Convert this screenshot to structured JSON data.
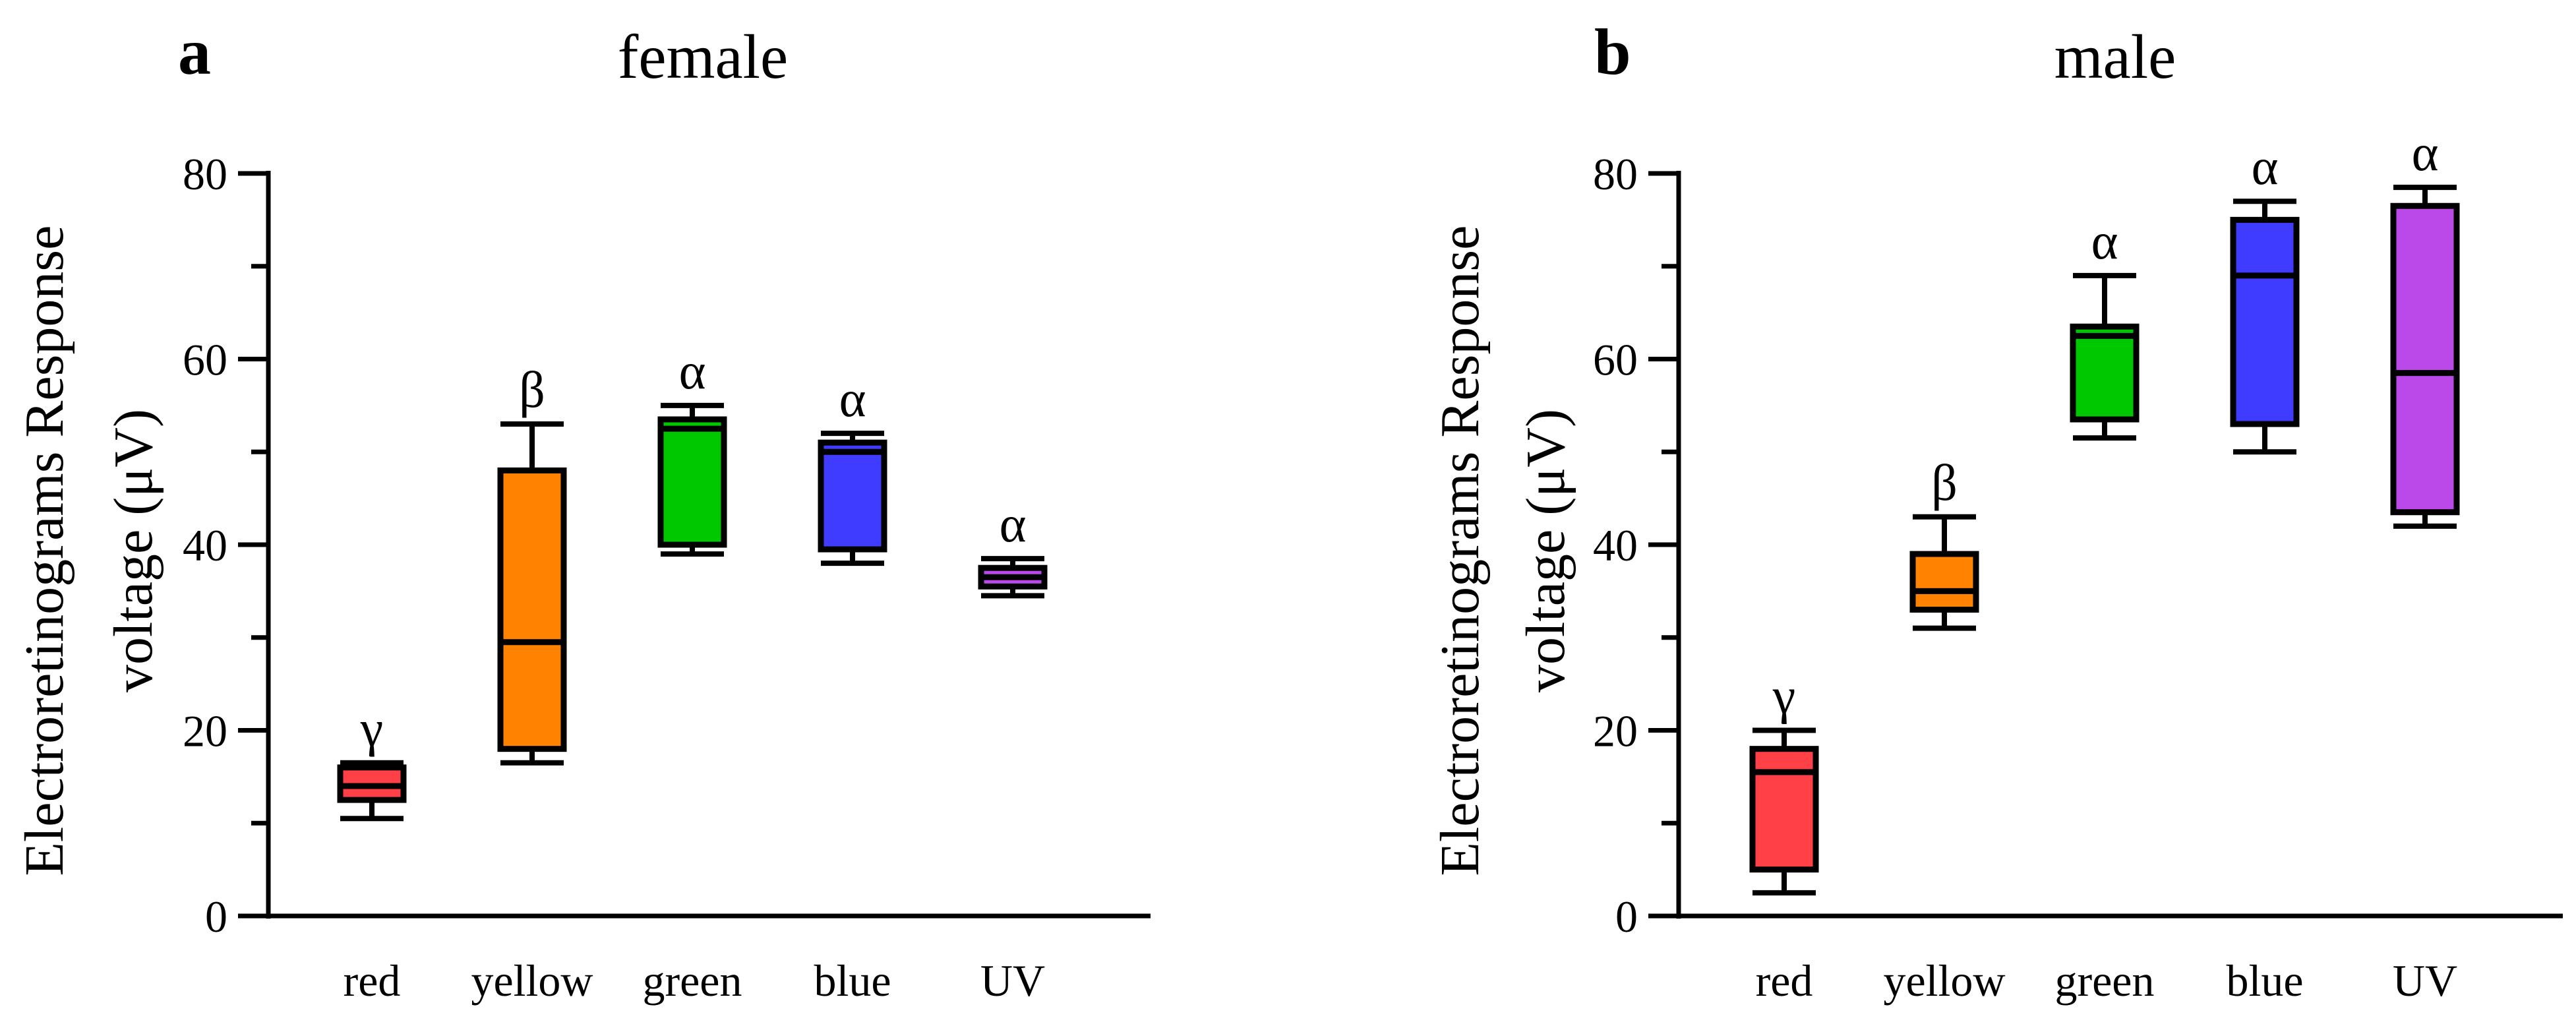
{
  "chart_data": [
    {
      "type": "box",
      "panel": "a",
      "title": "female",
      "ylabel_line1": "Electroretinograms Response",
      "ylabel_line2": "voltage (μV)",
      "xlabel": "",
      "ylim": [
        0,
        80
      ],
      "yticks": [
        0,
        20,
        40,
        60,
        80
      ],
      "categories": [
        "red",
        "yellow",
        "green",
        "blue",
        "UV"
      ],
      "colors": [
        "#ff4047",
        "#ff8200",
        "#00c800",
        "#3f3cff",
        "#bb48e8"
      ],
      "boxes": [
        {
          "min": 10.5,
          "q1": 12.5,
          "median": 14.0,
          "q3": 16.0,
          "max": 16.5,
          "sig": "γ"
        },
        {
          "min": 16.5,
          "q1": 18.0,
          "median": 29.5,
          "q3": 48.0,
          "max": 53.0,
          "sig": "β"
        },
        {
          "min": 39.0,
          "q1": 40.0,
          "median": 52.5,
          "q3": 53.5,
          "max": 55.0,
          "sig": "α"
        },
        {
          "min": 38.0,
          "q1": 39.5,
          "median": 50.0,
          "q3": 51.0,
          "max": 52.0,
          "sig": "α"
        },
        {
          "min": 34.5,
          "q1": 35.5,
          "median": 36.5,
          "q3": 37.5,
          "max": 38.5,
          "sig": "α"
        }
      ]
    },
    {
      "type": "box",
      "panel": "b",
      "title": "male",
      "ylabel_line1": "Electroretinograms Response",
      "ylabel_line2": "voltage (μV)",
      "xlabel": "",
      "ylim": [
        0,
        80
      ],
      "yticks": [
        0,
        20,
        40,
        60,
        80
      ],
      "categories": [
        "red",
        "yellow",
        "green",
        "blue",
        "UV"
      ],
      "colors": [
        "#ff4047",
        "#ff8200",
        "#00c800",
        "#3f3cff",
        "#bb48e8"
      ],
      "boxes": [
        {
          "min": 2.5,
          "q1": 5.0,
          "median": 15.5,
          "q3": 18.0,
          "max": 20.0,
          "sig": "γ"
        },
        {
          "min": 31.0,
          "q1": 33.0,
          "median": 35.0,
          "q3": 39.0,
          "max": 43.0,
          "sig": "β"
        },
        {
          "min": 51.5,
          "q1": 53.5,
          "median": 62.5,
          "q3": 63.5,
          "max": 69.0,
          "sig": "α"
        },
        {
          "min": 50.0,
          "q1": 53.0,
          "median": 69.0,
          "q3": 75.0,
          "max": 77.0,
          "sig": "α"
        },
        {
          "min": 42.0,
          "q1": 43.5,
          "median": 58.5,
          "q3": 76.5,
          "max": 78.5,
          "sig": "α"
        }
      ]
    }
  ]
}
